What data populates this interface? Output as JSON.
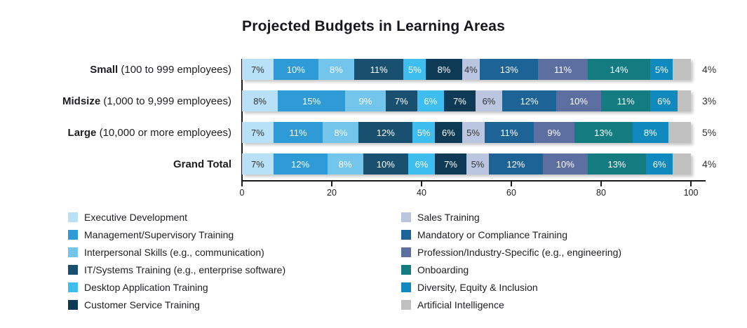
{
  "chart_data": {
    "type": "bar",
    "stacked": true,
    "orientation": "horizontal",
    "title": "Projected Budgets in Learning Areas",
    "unit": "%",
    "xlim": [
      0,
      100
    ],
    "x_ticks": [
      0,
      20,
      40,
      60,
      80,
      100
    ],
    "grid": false,
    "legend_position": "bottom, two columns",
    "categories": [
      {
        "name": "Executive Development",
        "color": "#B8E0F6",
        "text": "dark"
      },
      {
        "name": "Management/Supervisory Training",
        "color": "#2E9BD6",
        "text": "light"
      },
      {
        "name": "Interpersonal Skills (e.g., communication)",
        "color": "#74C5EC",
        "text": "light"
      },
      {
        "name": "IT/Systems Training (e.g., enterprise software)",
        "color": "#1A506F",
        "text": "light"
      },
      {
        "name": "Desktop Application Training",
        "color": "#3DBEEE",
        "text": "light"
      },
      {
        "name": "Customer Service Training",
        "color": "#0E3A55",
        "text": "light"
      },
      {
        "name": "Sales Training",
        "color": "#BAC5DF",
        "text": "dark"
      },
      {
        "name": "Mandatory or Compliance Training",
        "color": "#1D6396",
        "text": "light"
      },
      {
        "name": "Profession/Industry-Specific (e.g., engineering)",
        "color": "#5D6EA1",
        "text": "light"
      },
      {
        "name": "Onboarding",
        "color": "#147B81",
        "text": "light"
      },
      {
        "name": "Diversity, Equity & Inclusion",
        "color": "#1089BE",
        "text": "light"
      },
      {
        "name": "Artificial Intelligence",
        "color": "#C0C0C0",
        "text": "outside"
      }
    ],
    "rows": [
      {
        "label": "Small",
        "label_detail": "(100 to 999 employees)",
        "values": [
          7,
          10,
          8,
          11,
          5,
          8,
          4,
          13,
          11,
          14,
          5,
          4
        ]
      },
      {
        "label": "Midsize",
        "label_detail": "(1,000 to 9,999 employees)",
        "values": [
          8,
          15,
          9,
          7,
          6,
          7,
          6,
          12,
          10,
          11,
          6,
          3
        ]
      },
      {
        "label": "Large",
        "label_detail": "(10,000 or more employees)",
        "values": [
          7,
          11,
          8,
          12,
          5,
          6,
          5,
          11,
          9,
          13,
          8,
          5
        ]
      },
      {
        "label": "Grand Total",
        "label_detail": "",
        "values": [
          7,
          12,
          8,
          10,
          6,
          7,
          5,
          12,
          10,
          13,
          6,
          4
        ]
      }
    ]
  }
}
